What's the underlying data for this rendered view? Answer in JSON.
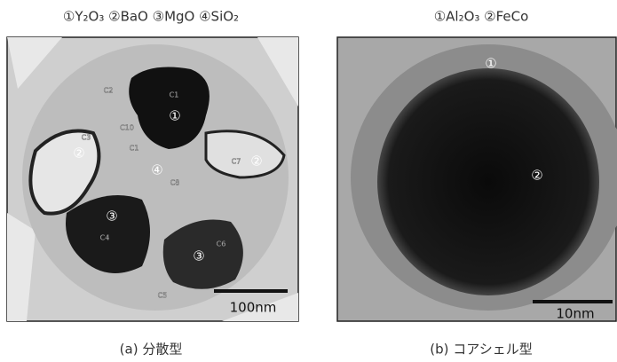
{
  "panels": [
    {
      "legend": "①Y₂O₃ ②BaO ③MgO ④SiO₂",
      "markers": [
        "①",
        "②",
        "②",
        "③",
        "③",
        "④"
      ],
      "points": [
        "C1",
        "C2",
        "C10",
        "C1",
        "C3",
        "C7",
        "C8",
        "C4",
        "C6",
        "C5"
      ],
      "scale_bar": "100nm",
      "caption": "(a) 分散型"
    },
    {
      "legend": "①Al₂O₃ ②FeCo",
      "markers": [
        "①",
        "②"
      ],
      "points": [],
      "scale_bar": "10nm",
      "caption": "(b) コアシェル型"
    }
  ]
}
